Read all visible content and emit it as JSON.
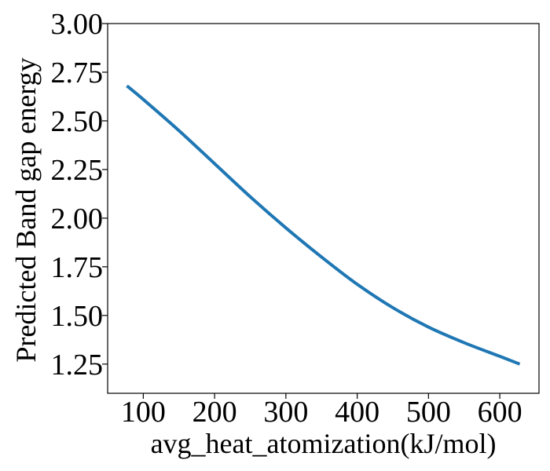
{
  "chart_data": {
    "type": "line",
    "title": "",
    "xlabel": "avg_heat_atomization(kJ/mol)",
    "ylabel": "Predicted Band gap energy",
    "xlim": [
      50,
      655
    ],
    "ylim": [
      1.1,
      3.0
    ],
    "grid": false,
    "legend": "none",
    "x_ticks": [
      100,
      200,
      300,
      400,
      500,
      600
    ],
    "x_tick_labels": [
      "100",
      "200",
      "300",
      "400",
      "500",
      "600"
    ],
    "y_ticks": [
      1.25,
      1.5,
      1.75,
      2.0,
      2.25,
      2.5,
      2.75,
      3.0
    ],
    "y_tick_labels": [
      "1.25",
      "1.50",
      "1.75",
      "2.00",
      "2.25",
      "2.50",
      "2.75",
      "3.00"
    ],
    "series": [
      {
        "color": "#1f77b4",
        "x": [
          77,
          100,
          150,
          200,
          250,
          300,
          350,
          400,
          450,
          500,
          550,
          600,
          628
        ],
        "y": [
          2.68,
          2.61,
          2.45,
          2.28,
          2.11,
          1.95,
          1.8,
          1.66,
          1.54,
          1.44,
          1.36,
          1.29,
          1.25
        ]
      }
    ]
  }
}
